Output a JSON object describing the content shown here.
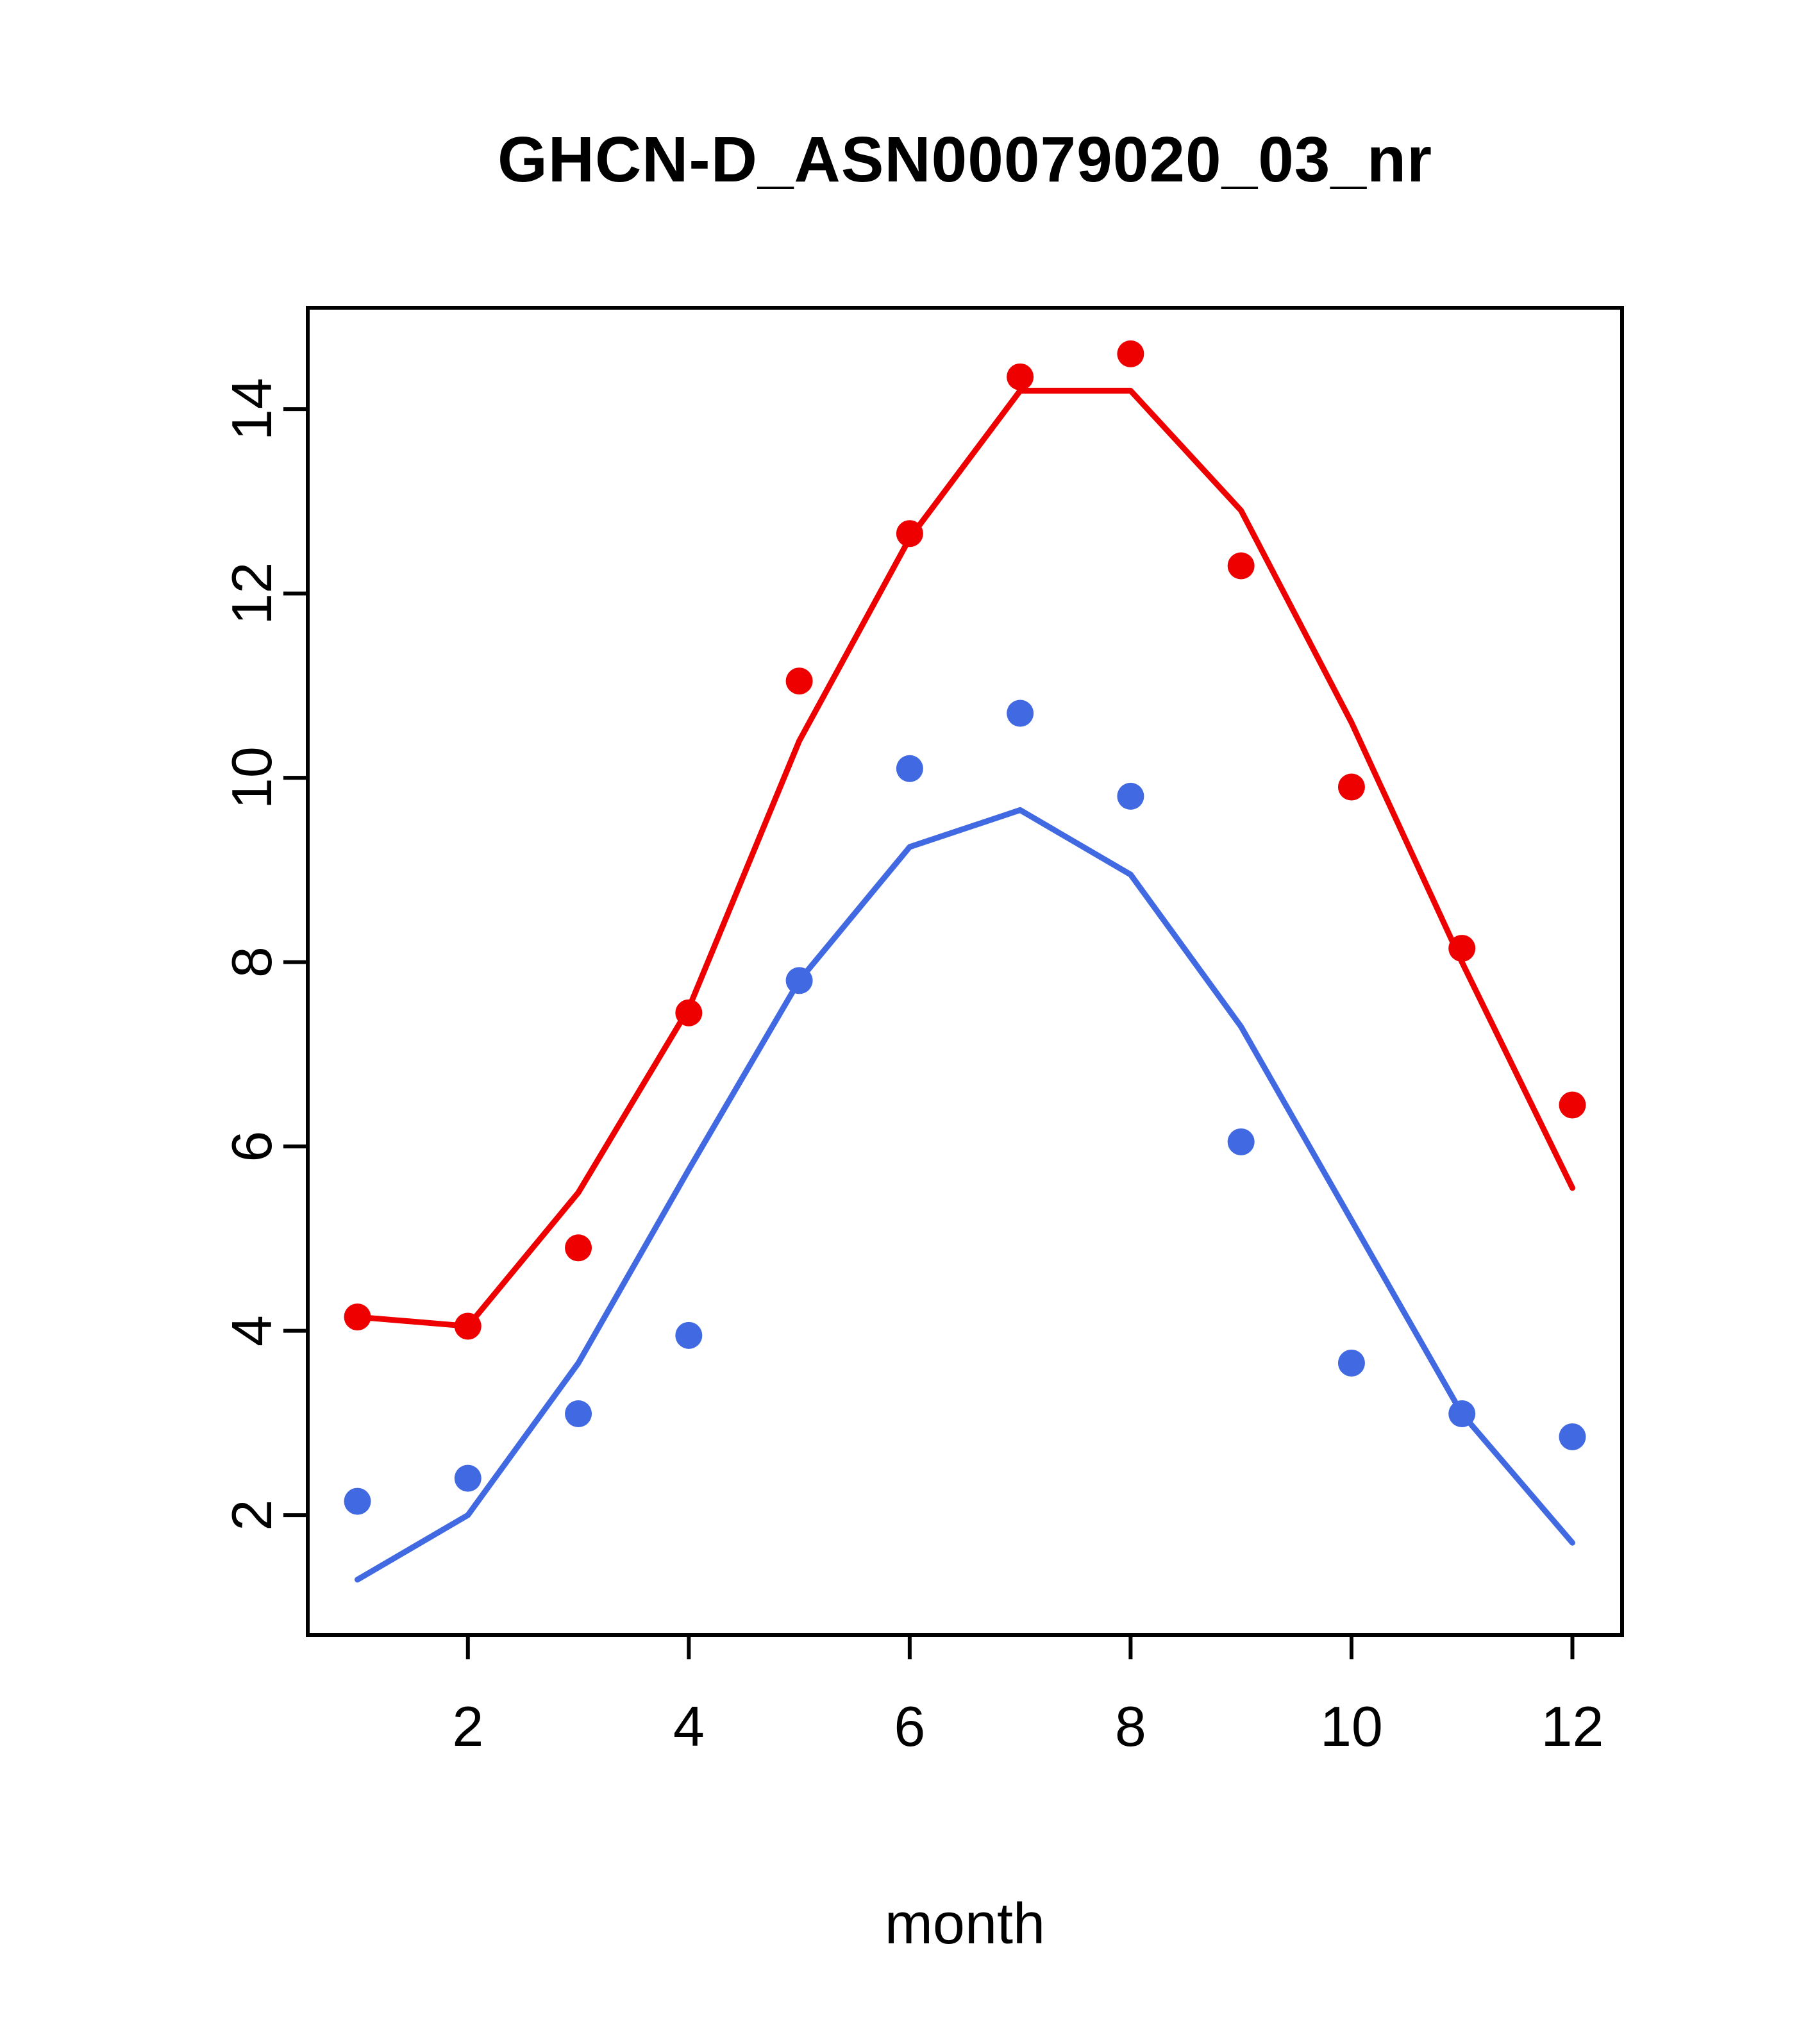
{
  "chart_data": {
    "type": "line",
    "title": "GHCN-D_ASN00079020_03_nr",
    "xlabel": "month",
    "ylabel": "",
    "x": [
      1,
      2,
      3,
      4,
      5,
      6,
      7,
      8,
      9,
      10,
      11,
      12
    ],
    "xlim": [
      0.55,
      12.45
    ],
    "ylim": [
      0.7,
      15.1
    ],
    "xticks": [
      2,
      4,
      6,
      8,
      10,
      12
    ],
    "yticks": [
      2,
      4,
      6,
      8,
      10,
      12,
      14
    ],
    "grid": false,
    "legend": "none",
    "colors": {
      "red": "#ee0000",
      "blue": "#4169e1"
    },
    "series": [
      {
        "name": "red-fitted-line",
        "type": "line",
        "color": "#ee0000",
        "values": [
          4.15,
          4.05,
          5.5,
          7.5,
          10.4,
          12.6,
          14.2,
          14.2,
          12.9,
          10.6,
          8.0,
          5.55
        ]
      },
      {
        "name": "blue-fitted-line",
        "type": "line",
        "color": "#4169e1",
        "values": [
          1.3,
          2.0,
          3.65,
          5.75,
          7.8,
          9.25,
          9.65,
          8.95,
          7.3,
          5.2,
          3.1,
          1.7
        ]
      },
      {
        "name": "red-observed-points",
        "type": "scatter",
        "color": "#ee0000",
        "values": [
          4.15,
          4.05,
          4.9,
          7.45,
          11.05,
          12.65,
          14.35,
          14.6,
          12.3,
          9.9,
          8.15,
          6.45
        ]
      },
      {
        "name": "blue-observed-points",
        "type": "scatter",
        "color": "#4169e1",
        "values": [
          2.15,
          2.4,
          3.1,
          3.95,
          7.8,
          10.1,
          10.7,
          9.8,
          6.05,
          3.65,
          3.1,
          2.85
        ]
      }
    ]
  }
}
